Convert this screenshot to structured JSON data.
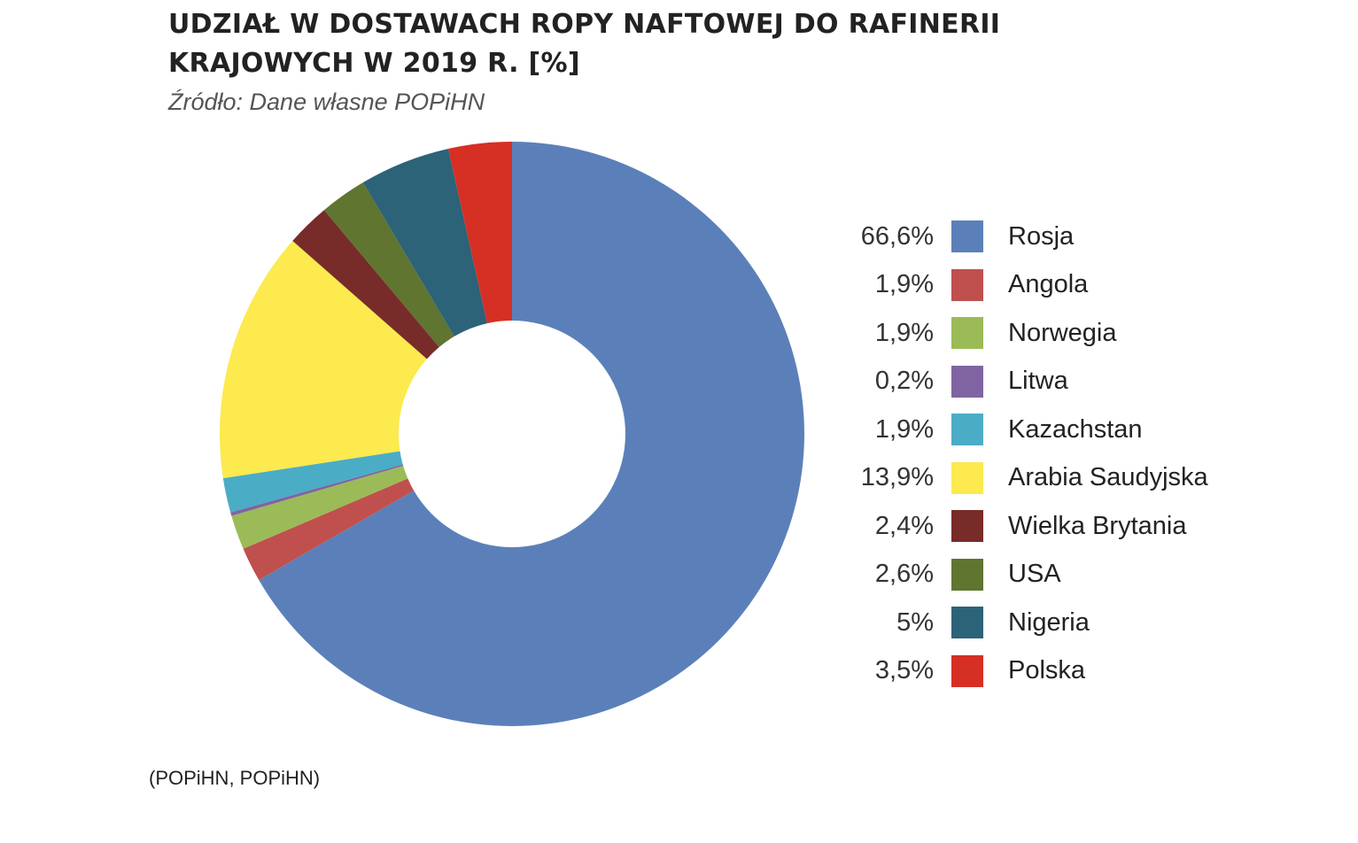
{
  "chart_data": {
    "type": "pie",
    "donut": true,
    "title": "UDZIAŁ W DOSTAWACH ROPY NAFTOWEJ DO RAFINERII KRAJOWYCH W 2019 R. [%]",
    "subtitle": "Źródło: Dane własne POPiHN",
    "unit": "%",
    "legend_position": "right",
    "slices": [
      {
        "label": "Rosja",
        "value": 66.6,
        "value_label": "66,6%",
        "color": "#5b80b9"
      },
      {
        "label": "Angola",
        "value": 1.9,
        "value_label": "1,9%",
        "color": "#c0504d"
      },
      {
        "label": "Norwegia",
        "value": 1.9,
        "value_label": "1,9%",
        "color": "#9bbb59"
      },
      {
        "label": "Litwa",
        "value": 0.2,
        "value_label": "0,2%",
        "color": "#8064a2"
      },
      {
        "label": "Kazachstan",
        "value": 1.9,
        "value_label": "1,9%",
        "color": "#4bacc6"
      },
      {
        "label": "Arabia Saudyjska",
        "value": 13.9,
        "value_label": "13,9%",
        "color": "#fcea4e"
      },
      {
        "label": "Wielka Brytania",
        "value": 2.4,
        "value_label": "2,4%",
        "color": "#772c2a"
      },
      {
        "label": "USA",
        "value": 2.6,
        "value_label": "2,6%",
        "color": "#5f7530"
      },
      {
        "label": "Nigeria",
        "value": 5,
        "value_label": "5%",
        "color": "#2c6378"
      },
      {
        "label": "Polska",
        "value": 3.5,
        "value_label": "3,5%",
        "color": "#d62f24"
      }
    ]
  },
  "caption": "(POPiHN, POPiHN)"
}
